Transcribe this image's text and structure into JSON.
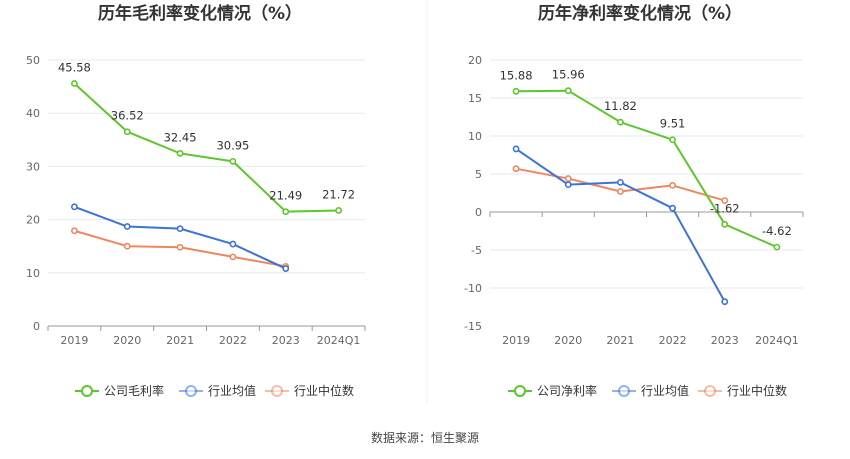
{
  "source": "数据来源：恒生聚源",
  "colors": {
    "company": "#5ec62c",
    "average": "#3d72d6",
    "median": "#ee875e",
    "grid": "#e6e9f0",
    "axis": "#999999"
  },
  "chart_data": [
    {
      "type": "line",
      "title": "历年毛利率变化情况（%）",
      "xlabel": "",
      "ylabel": "",
      "categories": [
        "2019",
        "2020",
        "2021",
        "2022",
        "2023",
        "2024Q1"
      ],
      "ylim": [
        0,
        50
      ],
      "yticks": [
        0,
        10,
        20,
        30,
        40,
        50
      ],
      "grid": true,
      "legend_position": "bottom",
      "series": [
        {
          "name": "公司毛利率",
          "key": "company",
          "values": [
            45.58,
            36.52,
            32.45,
            30.95,
            21.49,
            21.72
          ],
          "labels": [
            "45.58",
            "36.52",
            "32.45",
            "30.95",
            "21.49",
            "21.72"
          ]
        },
        {
          "name": "行业均值",
          "key": "average",
          "values": [
            22.4,
            18.7,
            18.3,
            15.4,
            10.8,
            null
          ]
        },
        {
          "name": "行业中位数",
          "key": "median",
          "values": [
            17.9,
            15.0,
            14.8,
            13.0,
            11.2,
            null
          ]
        }
      ]
    },
    {
      "type": "line",
      "title": "历年净利率变化情况（%）",
      "xlabel": "",
      "ylabel": "",
      "categories": [
        "2019",
        "2020",
        "2021",
        "2022",
        "2023",
        "2024Q1"
      ],
      "ylim": [
        -15,
        20
      ],
      "yticks": [
        -15,
        -10,
        -5,
        0,
        5,
        10,
        15,
        20
      ],
      "grid": true,
      "legend_position": "bottom",
      "series": [
        {
          "name": "公司净利率",
          "key": "company",
          "values": [
            15.88,
            15.96,
            11.82,
            9.51,
            -1.62,
            -4.62
          ],
          "labels": [
            "15.88",
            "15.96",
            "11.82",
            "9.51",
            "-1.62",
            "-4.62"
          ]
        },
        {
          "name": "行业均值",
          "key": "average",
          "values": [
            8.3,
            3.6,
            3.9,
            0.5,
            -11.8,
            null
          ]
        },
        {
          "name": "行业中位数",
          "key": "median",
          "values": [
            5.7,
            4.4,
            2.7,
            3.5,
            1.5,
            null
          ]
        }
      ]
    }
  ]
}
